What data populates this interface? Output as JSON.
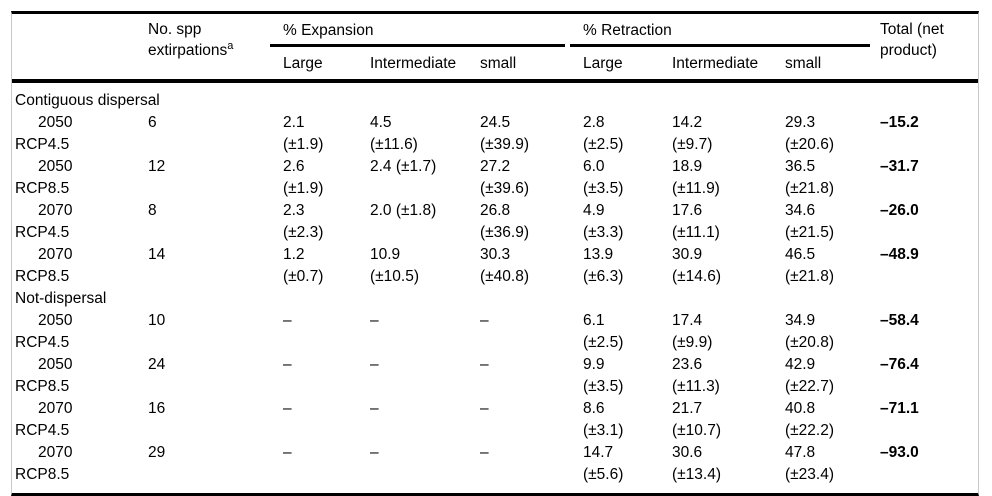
{
  "table": {
    "header": {
      "spp_line1": "No. spp",
      "spp_line2": "extirpations",
      "spp_superscript": "a",
      "expansion_group": "% Expansion",
      "retraction_group": "% Retraction",
      "expansion_subcols": [
        "Large",
        "Intermediate",
        "small"
      ],
      "retraction_subcols": [
        "Large",
        "Intermediate",
        "small"
      ],
      "total_line1": "Total (net",
      "total_line2": "product)"
    },
    "sections": [
      {
        "label": "Contiguous dispersal",
        "rows": [
          {
            "period": "2050",
            "scenario": "RCP4.5",
            "n": "6",
            "cells": [
              [
                "2.1",
                "(±1.9)"
              ],
              [
                "4.5",
                "(±11.6)"
              ],
              [
                "24.5",
                "(±39.9)"
              ],
              [
                "2.8",
                "(±2.5)"
              ],
              [
                "14.2",
                "(±9.7)"
              ],
              [
                "29.3",
                "(±20.6)"
              ]
            ],
            "total": "–15.2"
          },
          {
            "period": "2050",
            "scenario": "RCP8.5",
            "n": "12",
            "cells": [
              [
                "2.6",
                "(±1.9)"
              ],
              [
                "2.4 (±1.7)",
                ""
              ],
              [
                "27.2",
                "(±39.6)"
              ],
              [
                "6.0",
                "(±3.5)"
              ],
              [
                "18.9",
                "(±11.9)"
              ],
              [
                "36.5",
                "(±21.8)"
              ]
            ],
            "total": "–31.7"
          },
          {
            "period": "2070",
            "scenario": "RCP4.5",
            "n": "8",
            "cells": [
              [
                "2.3",
                "(±2.3)"
              ],
              [
                "2.0 (±1.8)",
                ""
              ],
              [
                "26.8",
                "(±36.9)"
              ],
              [
                "4.9",
                "(±3.3)"
              ],
              [
                "17.6",
                "(±11.1)"
              ],
              [
                "34.6",
                "(±21.5)"
              ]
            ],
            "total": "–26.0"
          },
          {
            "period": "2070",
            "scenario": "RCP8.5",
            "n": "14",
            "cells": [
              [
                "1.2",
                "(±0.7)"
              ],
              [
                "10.9",
                "(±10.5)"
              ],
              [
                "30.3",
                "(±40.8)"
              ],
              [
                "13.9",
                "(±6.3)"
              ],
              [
                "30.9",
                "(±14.6)"
              ],
              [
                "46.5",
                "(±21.8)"
              ]
            ],
            "total": "–48.9"
          }
        ]
      },
      {
        "label": "Not-dispersal",
        "rows": [
          {
            "period": "2050",
            "scenario": "RCP4.5",
            "n": "10",
            "cells": [
              [
                "–",
                ""
              ],
              [
                "–",
                ""
              ],
              [
                "–",
                ""
              ],
              [
                "6.1",
                "(±2.5)"
              ],
              [
                "17.4",
                "(±9.9)"
              ],
              [
                "34.9",
                "(±20.8)"
              ]
            ],
            "total": "–58.4"
          },
          {
            "period": "2050",
            "scenario": "RCP8.5",
            "n": "24",
            "cells": [
              [
                "–",
                ""
              ],
              [
                "–",
                ""
              ],
              [
                "–",
                ""
              ],
              [
                "9.9",
                "(±3.5)"
              ],
              [
                "23.6",
                "(±11.3)"
              ],
              [
                "42.9",
                "(±22.7)"
              ]
            ],
            "total": "–76.4"
          },
          {
            "period": "2070",
            "scenario": "RCP4.5",
            "n": "16",
            "cells": [
              [
                "–",
                ""
              ],
              [
                "–",
                ""
              ],
              [
                "–",
                ""
              ],
              [
                "8.6",
                "(±3.1)"
              ],
              [
                "21.7",
                "(±10.7)"
              ],
              [
                "40.8",
                "(±22.2)"
              ]
            ],
            "total": "–71.1"
          },
          {
            "period": "2070",
            "scenario": "RCP8.5",
            "n": "29",
            "cells": [
              [
                "–",
                ""
              ],
              [
                "–",
                ""
              ],
              [
                "–",
                ""
              ],
              [
                "14.7",
                "(±5.6)"
              ],
              [
                "30.6",
                "(±13.4)"
              ],
              [
                "47.8",
                "(±23.4)"
              ]
            ],
            "total": "–93.0"
          }
        ]
      }
    ]
  },
  "colors": {
    "rule": "#000000",
    "side_border": "#c9c9c9",
    "text": "#000000"
  }
}
